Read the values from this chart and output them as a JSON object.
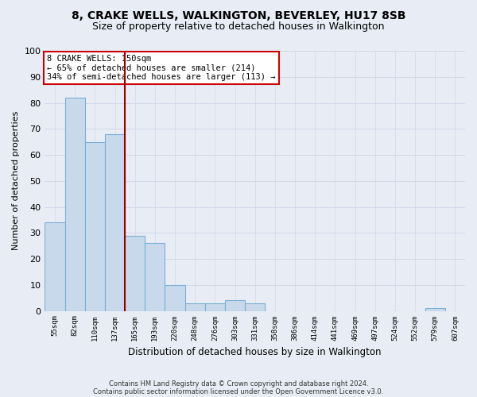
{
  "title1": "8, CRAKE WELLS, WALKINGTON, BEVERLEY, HU17 8SB",
  "title2": "Size of property relative to detached houses in Walkington",
  "xlabel": "Distribution of detached houses by size in Walkington",
  "ylabel": "Number of detached properties",
  "bin_labels": [
    "55sqm",
    "82sqm",
    "110sqm",
    "137sqm",
    "165sqm",
    "193sqm",
    "220sqm",
    "248sqm",
    "276sqm",
    "303sqm",
    "331sqm",
    "358sqm",
    "386sqm",
    "414sqm",
    "441sqm",
    "469sqm",
    "497sqm",
    "524sqm",
    "552sqm",
    "579sqm",
    "607sqm"
  ],
  "bar_values": [
    34,
    82,
    65,
    68,
    29,
    26,
    10,
    3,
    3,
    4,
    3,
    0,
    0,
    0,
    0,
    0,
    0,
    0,
    0,
    1,
    0
  ],
  "bar_color": "#c8d9ec",
  "bar_edge_color": "#7bafd4",
  "grid_color": "#d0d8e8",
  "vline_x": 3.5,
  "vline_color": "#990000",
  "annotation_text": "8 CRAKE WELLS: 150sqm\n← 65% of detached houses are smaller (214)\n34% of semi-detached houses are larger (113) →",
  "annotation_box_color": "#ffffff",
  "annotation_box_edge": "#cc0000",
  "ylim": [
    0,
    100
  ],
  "yticks": [
    0,
    10,
    20,
    30,
    40,
    50,
    60,
    70,
    80,
    90,
    100
  ],
  "footer1": "Contains HM Land Registry data © Crown copyright and database right 2024.",
  "footer2": "Contains public sector information licensed under the Open Government Licence v3.0.",
  "bg_color": "#e8edf5",
  "plot_bg_color": "#e8edf5"
}
